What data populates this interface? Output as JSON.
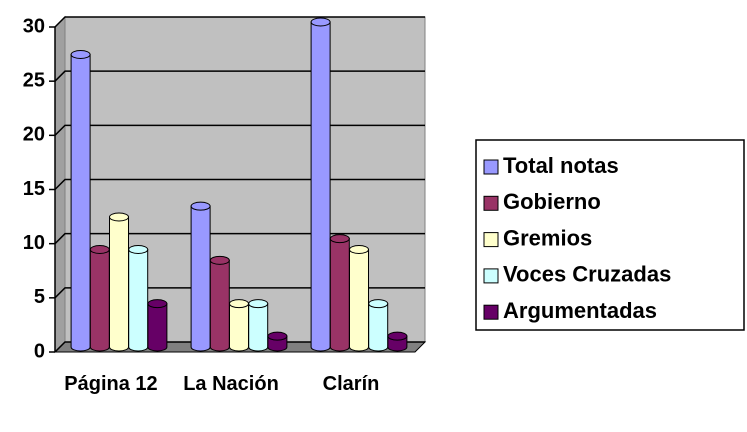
{
  "chart_data": {
    "type": "bar",
    "categories": [
      "Página 12",
      "La Nación",
      "Clarín"
    ],
    "series": [
      {
        "name": "Total notas",
        "color": "#9999ff",
        "values": [
          27,
          13,
          30
        ]
      },
      {
        "name": "Gobierno",
        "color": "#993366",
        "values": [
          9,
          8,
          10
        ]
      },
      {
        "name": "Gremios",
        "color": "#ffffcc",
        "values": [
          12,
          4,
          9
        ]
      },
      {
        "name": "Voces Cruzadas",
        "color": "#ccffff",
        "values": [
          9,
          4,
          4
        ]
      },
      {
        "name": "Argumentadas",
        "color": "#660066",
        "values": [
          4,
          1,
          1
        ]
      }
    ],
    "ylim": [
      0,
      30
    ],
    "yticks": [
      0,
      5,
      10,
      15,
      20,
      25,
      30
    ],
    "grid": true,
    "legend": "right"
  }
}
